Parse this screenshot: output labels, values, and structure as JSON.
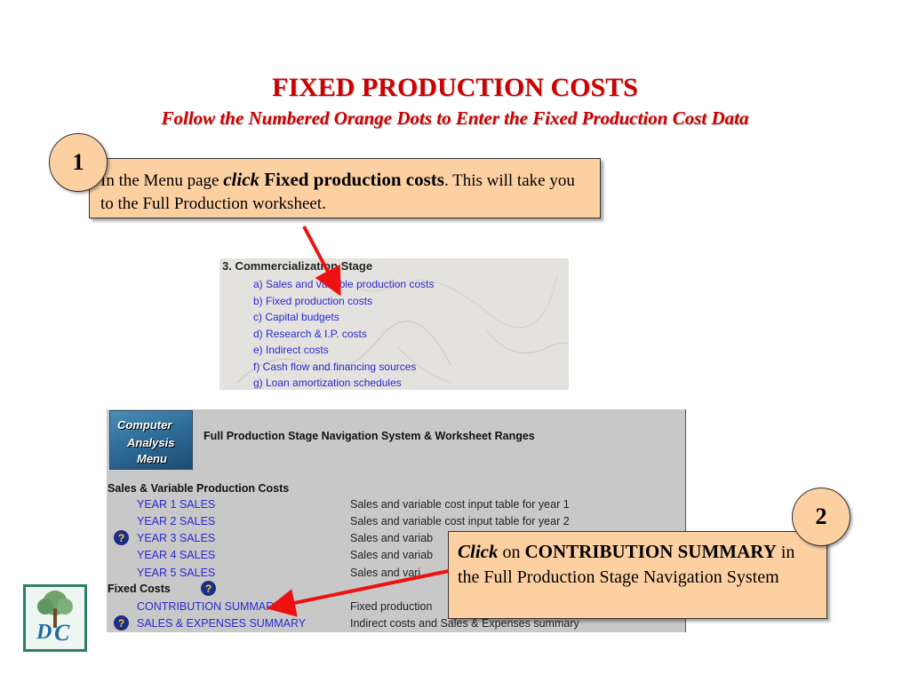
{
  "title": "FIXED PRODUCTION COSTS",
  "subtitle": "Follow the Numbered Orange Dots to Enter the Fixed Production Cost Data",
  "step1": {
    "number": "1",
    "text_before": "In the Menu page ",
    "text_click": "click",
    "text_bold": " Fixed production costs",
    "text_after": ". This will take you to the Full Production worksheet."
  },
  "step2": {
    "number": "2",
    "text_click": "Click",
    "text_on": " on ",
    "text_bold": "CONTRIBUTION SUMMARY",
    "text_after": " in the Full Production Stage Navigation System"
  },
  "menu": {
    "heading": "3. Commercialization Stage",
    "items": [
      "a) Sales and variable production costs",
      "b) Fixed production costs",
      "c) Capital budgets",
      "d) Research & I.P. costs",
      "e) Indirect costs",
      "f) Cash flow and financing sources",
      "g) Loan amortization schedules"
    ]
  },
  "nav": {
    "logo_lines": [
      "Computer",
      "Analysis",
      "Menu"
    ],
    "title": "Full Production Stage Navigation System & Worksheet Ranges",
    "section1": "Sales & Variable Production Costs",
    "sales_rows": [
      {
        "link": "YEAR 1 SALES",
        "desc": "Sales and variable cost input table for year 1"
      },
      {
        "link": "YEAR 2 SALES",
        "desc": "Sales and variable cost input table for year 2"
      },
      {
        "link": "YEAR 3 SALES",
        "desc": "Sales and variab"
      },
      {
        "link": "YEAR 4 SALES",
        "desc": "Sales and variab"
      },
      {
        "link": "YEAR 5 SALES",
        "desc": "Sales and vari"
      }
    ],
    "section2": "Fixed Costs",
    "fixed_rows": [
      {
        "link": "CONTRIBUTION SUMMARY",
        "desc": "Fixed production"
      },
      {
        "link": "SALES & EXPENSES SUMMARY",
        "desc": "Indirect costs and Sales & Expenses summary"
      }
    ],
    "help_symbol": "?"
  },
  "colors": {
    "title_red": "#cc0000",
    "callout_orange": "#fdd0a2",
    "link_blue": "#2a2ad2",
    "arrow_red": "#ee1111"
  }
}
